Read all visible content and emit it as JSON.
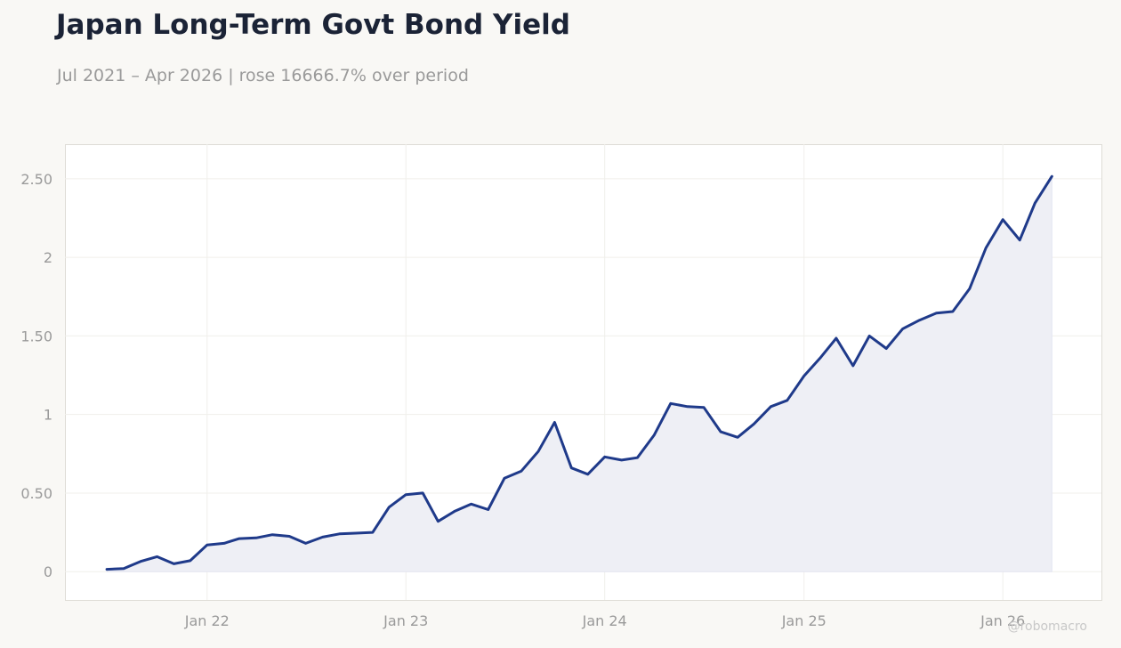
{
  "title": "Japan Long-Term Govt Bond Yield",
  "subtitle": "Jul 2021 – Apr 2026 | rose 16666.7% over period",
  "watermark": "@robomacro",
  "colors": {
    "line": "#1f3a8a",
    "area": "#eeeff5",
    "background": "#f9f8f5",
    "plot_background": "#ffffff"
  },
  "chart_data": {
    "type": "area",
    "title": "Japan Long-Term Govt Bond Yield",
    "xlabel": "",
    "ylabel": "",
    "ylim": [
      -0.18,
      2.72
    ],
    "xlim": [
      "2021-04-15",
      "2026-07-01"
    ],
    "grid": true,
    "yticks": [
      {
        "value": 0,
        "label": "0"
      },
      {
        "value": 0.5,
        "label": "0.50"
      },
      {
        "value": 1,
        "label": "1"
      },
      {
        "value": 1.5,
        "label": "1.50"
      },
      {
        "value": 2,
        "label": "2"
      },
      {
        "value": 2.5,
        "label": "2.50"
      }
    ],
    "xticks": [
      {
        "value": "2022-01-01",
        "label": "Jan 22"
      },
      {
        "value": "2023-01-01",
        "label": "Jan 23"
      },
      {
        "value": "2024-01-01",
        "label": "Jan 24"
      },
      {
        "value": "2025-01-01",
        "label": "Jan 25"
      },
      {
        "value": "2026-01-01",
        "label": "Jan 26"
      }
    ],
    "series": [
      {
        "x": [
          "2021-07-01",
          "2021-08-01",
          "2021-09-01",
          "2021-10-01",
          "2021-11-01",
          "2021-12-01",
          "2022-01-01",
          "2022-02-01",
          "2022-03-01",
          "2022-04-01",
          "2022-05-01",
          "2022-06-01",
          "2022-07-01",
          "2022-08-01",
          "2022-09-01",
          "2022-10-01",
          "2022-11-01",
          "2022-12-01",
          "2023-01-01",
          "2023-02-01",
          "2023-03-01",
          "2023-04-01",
          "2023-05-01",
          "2023-06-01",
          "2023-07-01",
          "2023-08-01",
          "2023-09-01",
          "2023-10-01",
          "2023-11-01",
          "2023-12-01",
          "2024-01-01",
          "2024-02-01",
          "2024-03-01",
          "2024-04-01",
          "2024-05-01",
          "2024-06-01",
          "2024-07-01",
          "2024-08-01",
          "2024-09-01",
          "2024-10-01",
          "2024-11-01",
          "2024-12-01",
          "2025-01-01",
          "2025-02-01",
          "2025-03-01",
          "2025-04-01",
          "2025-05-01",
          "2025-06-01",
          "2025-07-01",
          "2025-08-01",
          "2025-09-01",
          "2025-10-01",
          "2025-11-01",
          "2025-12-01",
          "2026-01-01",
          "2026-02-01",
          "2026-03-01",
          "2026-04-01"
        ],
        "values": [
          0.015,
          0.02,
          0.065,
          0.095,
          0.05,
          0.07,
          0.17,
          0.18,
          0.21,
          0.215,
          0.235,
          0.225,
          0.18,
          0.22,
          0.24,
          0.245,
          0.25,
          0.41,
          0.49,
          0.5,
          0.32,
          0.385,
          0.43,
          0.395,
          0.595,
          0.64,
          0.765,
          0.95,
          0.66,
          0.62,
          0.73,
          0.71,
          0.725,
          0.87,
          1.07,
          1.05,
          1.045,
          0.89,
          0.855,
          0.94,
          1.05,
          1.09,
          1.245,
          1.365,
          1.485,
          1.31,
          1.5,
          1.42,
          1.545,
          1.6,
          1.645,
          1.655,
          1.8,
          2.06,
          2.24,
          2.11,
          2.345,
          2.515
        ]
      }
    ]
  }
}
